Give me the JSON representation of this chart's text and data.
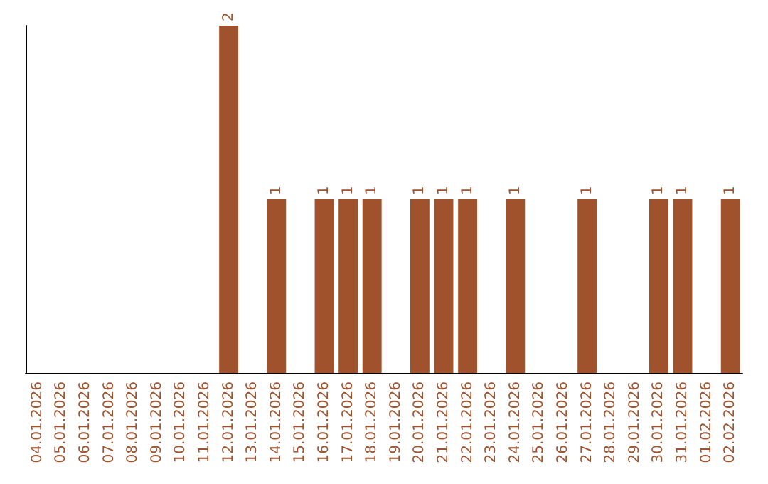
{
  "chart_data": {
    "type": "bar",
    "categories": [
      "04.01.2026",
      "05.01.2026",
      "06.01.2026",
      "07.01.2026",
      "08.01.2026",
      "09.01.2026",
      "10.01.2026",
      "11.01.2026",
      "12.01.2026",
      "13.01.2026",
      "14.01.2026",
      "15.01.2026",
      "16.01.2026",
      "17.01.2026",
      "18.01.2026",
      "19.01.2026",
      "20.01.2026",
      "21.01.2026",
      "22.01.2026",
      "23.01.2026",
      "24.01.2026",
      "25.01.2026",
      "26.01.2026",
      "27.01.2026",
      "28.01.2026",
      "29.01.2026",
      "30.01.2026",
      "31.01.2026",
      "01.02.2026",
      "02.02.2026"
    ],
    "values": [
      0,
      0,
      0,
      0,
      0,
      0,
      0,
      0,
      2,
      0,
      1,
      0,
      1,
      1,
      1,
      0,
      1,
      1,
      1,
      0,
      1,
      0,
      0,
      1,
      0,
      0,
      1,
      1,
      0,
      1
    ],
    "value_labels": [
      null,
      null,
      null,
      null,
      null,
      null,
      null,
      null,
      "2",
      null,
      "1",
      null,
      "1",
      "1",
      "1",
      null,
      "1",
      "1",
      "1",
      null,
      "1",
      null,
      null,
      "1",
      null,
      null,
      "1",
      "1",
      null,
      "1"
    ],
    "color": "#a0522d"
  }
}
